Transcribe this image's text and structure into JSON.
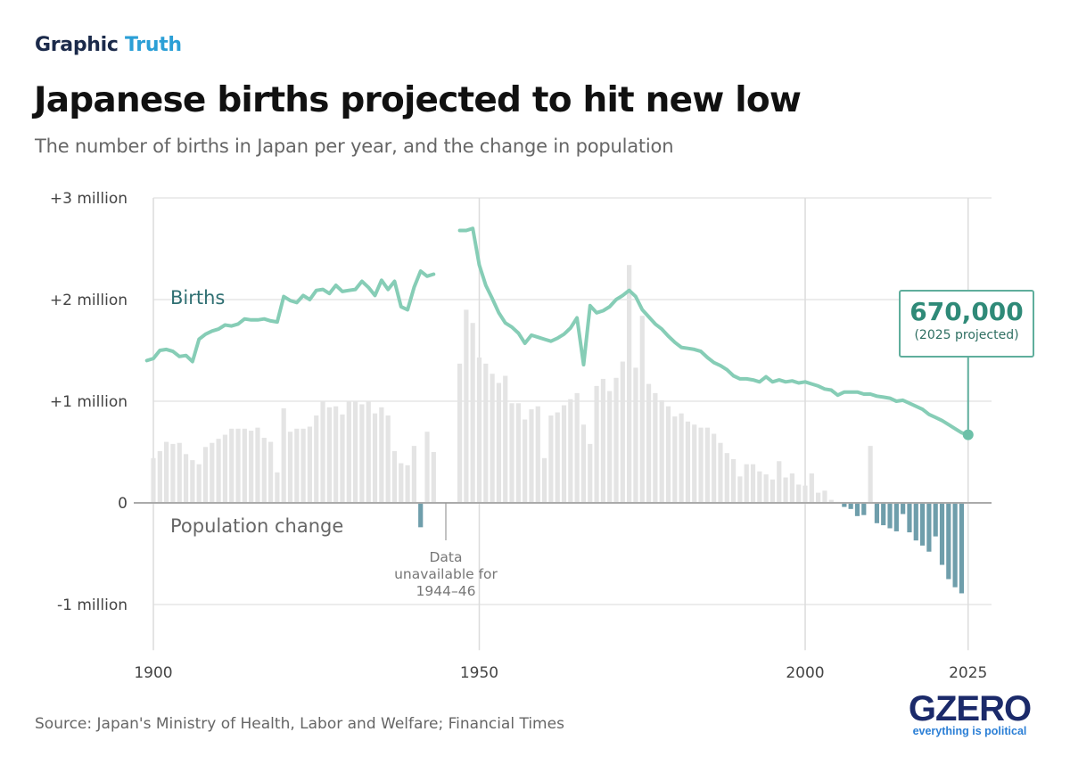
{
  "header": {
    "kicker_part1": "Graphic",
    "kicker_part2": "Truth",
    "title": "Japanese births projected to hit new low",
    "subtitle": "The number of births in Japan per year, and the change in population"
  },
  "footer": {
    "source": "Source: Japan's Ministry of Health, Labor and Welfare; Financial Times",
    "logo": "GZERO",
    "logo_tagline": "everything is political"
  },
  "colors": {
    "births_line": "#86cdb6",
    "bars_positive": "#e4e4e4",
    "bars_negative": "#6f9eab",
    "kicker_navy": "#1b2a4a",
    "kicker_blue": "#2b9fd6",
    "callout": "#2f8a78"
  },
  "chart_data": {
    "type": "line+bar",
    "title": "Japanese births projected to hit new low",
    "subtitle": "The number of births in Japan per year, and the change in population",
    "xlim": [
      1899,
      2029
    ],
    "ylim": [
      -1.45,
      3
    ],
    "x_ticks": [
      1900,
      1950,
      2000,
      2025
    ],
    "x_tick_labels": [
      "1900",
      "1950",
      "2000",
      "2025"
    ],
    "y_ticks": [
      3,
      2,
      1,
      0,
      -1
    ],
    "y_tick_labels": [
      "+3 million",
      "+2 million",
      "+1 million",
      "0",
      "-1 million"
    ],
    "grid": true,
    "series_labels": {
      "births": "Births",
      "population_change": "Population change"
    },
    "births": {
      "unit": "million",
      "points": [
        [
          1899,
          1.4
        ],
        [
          1900,
          1.42
        ],
        [
          1901,
          1.5
        ],
        [
          1902,
          1.51
        ],
        [
          1903,
          1.49
        ],
        [
          1904,
          1.44
        ],
        [
          1905,
          1.45
        ],
        [
          1906,
          1.39
        ],
        [
          1907,
          1.61
        ],
        [
          1908,
          1.66
        ],
        [
          1909,
          1.69
        ],
        [
          1910,
          1.71
        ],
        [
          1911,
          1.75
        ],
        [
          1912,
          1.74
        ],
        [
          1913,
          1.76
        ],
        [
          1914,
          1.81
        ],
        [
          1915,
          1.8
        ],
        [
          1916,
          1.8
        ],
        [
          1917,
          1.81
        ],
        [
          1918,
          1.79
        ],
        [
          1919,
          1.78
        ],
        [
          1920,
          2.03
        ],
        [
          1921,
          1.99
        ],
        [
          1922,
          1.97
        ],
        [
          1923,
          2.04
        ],
        [
          1924,
          2.0
        ],
        [
          1925,
          2.09
        ],
        [
          1926,
          2.1
        ],
        [
          1927,
          2.06
        ],
        [
          1928,
          2.14
        ],
        [
          1929,
          2.08
        ],
        [
          1930,
          2.09
        ],
        [
          1931,
          2.1
        ],
        [
          1932,
          2.18
        ],
        [
          1933,
          2.12
        ],
        [
          1934,
          2.04
        ],
        [
          1935,
          2.19
        ],
        [
          1936,
          2.1
        ],
        [
          1937,
          2.18
        ],
        [
          1938,
          1.93
        ],
        [
          1939,
          1.9
        ],
        [
          1940,
          2.12
        ],
        [
          1941,
          2.28
        ],
        [
          1942,
          2.23
        ],
        [
          1943,
          2.25
        ]
      ],
      "points_after_gap": [
        [
          1947,
          2.68
        ],
        [
          1948,
          2.68
        ],
        [
          1949,
          2.7
        ],
        [
          1950,
          2.34
        ],
        [
          1951,
          2.14
        ],
        [
          1952,
          2.01
        ],
        [
          1953,
          1.87
        ],
        [
          1954,
          1.77
        ],
        [
          1955,
          1.73
        ],
        [
          1956,
          1.67
        ],
        [
          1957,
          1.57
        ],
        [
          1958,
          1.65
        ],
        [
          1959,
          1.63
        ],
        [
          1960,
          1.61
        ],
        [
          1961,
          1.59
        ],
        [
          1962,
          1.62
        ],
        [
          1963,
          1.66
        ],
        [
          1964,
          1.72
        ],
        [
          1965,
          1.82
        ],
        [
          1966,
          1.36
        ],
        [
          1967,
          1.94
        ],
        [
          1968,
          1.87
        ],
        [
          1969,
          1.89
        ],
        [
          1970,
          1.93
        ],
        [
          1971,
          2.0
        ],
        [
          1972,
          2.04
        ],
        [
          1973,
          2.09
        ],
        [
          1974,
          2.03
        ],
        [
          1975,
          1.9
        ],
        [
          1976,
          1.83
        ],
        [
          1977,
          1.76
        ],
        [
          1978,
          1.71
        ],
        [
          1979,
          1.64
        ],
        [
          1980,
          1.58
        ],
        [
          1981,
          1.53
        ],
        [
          1982,
          1.52
        ],
        [
          1983,
          1.51
        ],
        [
          1984,
          1.49
        ],
        [
          1985,
          1.43
        ],
        [
          1986,
          1.38
        ],
        [
          1987,
          1.35
        ],
        [
          1988,
          1.31
        ],
        [
          1989,
          1.25
        ],
        [
          1990,
          1.22
        ],
        [
          1991,
          1.22
        ],
        [
          1992,
          1.21
        ],
        [
          1993,
          1.19
        ],
        [
          1994,
          1.24
        ],
        [
          1995,
          1.19
        ],
        [
          1996,
          1.21
        ],
        [
          1997,
          1.19
        ],
        [
          1998,
          1.2
        ],
        [
          1999,
          1.18
        ],
        [
          2000,
          1.19
        ],
        [
          2001,
          1.17
        ],
        [
          2002,
          1.15
        ],
        [
          2003,
          1.12
        ],
        [
          2004,
          1.11
        ],
        [
          2005,
          1.06
        ],
        [
          2006,
          1.09
        ],
        [
          2007,
          1.09
        ],
        [
          2008,
          1.09
        ],
        [
          2009,
          1.07
        ],
        [
          2010,
          1.07
        ],
        [
          2011,
          1.05
        ],
        [
          2012,
          1.04
        ],
        [
          2013,
          1.03
        ],
        [
          2014,
          1.0
        ],
        [
          2015,
          1.01
        ],
        [
          2016,
          0.98
        ],
        [
          2017,
          0.95
        ],
        [
          2018,
          0.92
        ],
        [
          2019,
          0.87
        ],
        [
          2020,
          0.84
        ],
        [
          2021,
          0.81
        ],
        [
          2022,
          0.77
        ],
        [
          2023,
          0.73
        ],
        [
          2024,
          0.69
        ],
        [
          2025,
          0.67
        ]
      ]
    },
    "population_change": {
      "unit": "million",
      "points": [
        [
          1900,
          0.44
        ],
        [
          1901,
          0.51
        ],
        [
          1902,
          0.6
        ],
        [
          1903,
          0.58
        ],
        [
          1904,
          0.59
        ],
        [
          1905,
          0.48
        ],
        [
          1906,
          0.42
        ],
        [
          1907,
          0.38
        ],
        [
          1908,
          0.55
        ],
        [
          1909,
          0.59
        ],
        [
          1910,
          0.63
        ],
        [
          1911,
          0.67
        ],
        [
          1912,
          0.73
        ],
        [
          1913,
          0.73
        ],
        [
          1914,
          0.73
        ],
        [
          1915,
          0.71
        ],
        [
          1916,
          0.74
        ],
        [
          1917,
          0.64
        ],
        [
          1918,
          0.6
        ],
        [
          1919,
          0.3
        ],
        [
          1920,
          0.93
        ],
        [
          1921,
          0.7
        ],
        [
          1922,
          0.73
        ],
        [
          1923,
          0.73
        ],
        [
          1924,
          0.75
        ],
        [
          1925,
          0.86
        ],
        [
          1926,
          1.0
        ],
        [
          1927,
          0.94
        ],
        [
          1928,
          0.95
        ],
        [
          1929,
          0.87
        ],
        [
          1930,
          1.0
        ],
        [
          1931,
          1.0
        ],
        [
          1932,
          0.97
        ],
        [
          1933,
          1.0
        ],
        [
          1934,
          0.88
        ],
        [
          1935,
          0.94
        ],
        [
          1936,
          0.86
        ],
        [
          1937,
          0.51
        ],
        [
          1938,
          0.39
        ],
        [
          1939,
          0.37
        ],
        [
          1940,
          0.56
        ],
        [
          1941,
          -0.24
        ],
        [
          1942,
          0.7
        ],
        [
          1943,
          0.5
        ],
        [
          1947,
          1.37
        ],
        [
          1948,
          1.9
        ],
        [
          1949,
          1.77
        ],
        [
          1950,
          1.43
        ],
        [
          1951,
          1.37
        ],
        [
          1952,
          1.27
        ],
        [
          1953,
          1.18
        ],
        [
          1954,
          1.25
        ],
        [
          1955,
          0.98
        ],
        [
          1956,
          0.98
        ],
        [
          1957,
          0.82
        ],
        [
          1958,
          0.92
        ],
        [
          1959,
          0.95
        ],
        [
          1960,
          0.44
        ],
        [
          1961,
          0.86
        ],
        [
          1962,
          0.89
        ],
        [
          1963,
          0.96
        ],
        [
          1964,
          1.02
        ],
        [
          1965,
          1.08
        ],
        [
          1966,
          0.77
        ],
        [
          1967,
          0.58
        ],
        [
          1968,
          1.15
        ],
        [
          1969,
          1.22
        ],
        [
          1970,
          1.1
        ],
        [
          1971,
          1.23
        ],
        [
          1972,
          1.39
        ],
        [
          1973,
          2.34
        ],
        [
          1974,
          1.33
        ],
        [
          1975,
          1.84
        ],
        [
          1976,
          1.17
        ],
        [
          1977,
          1.08
        ],
        [
          1978,
          1.01
        ],
        [
          1979,
          0.95
        ],
        [
          1980,
          0.85
        ],
        [
          1981,
          0.88
        ],
        [
          1982,
          0.8
        ],
        [
          1983,
          0.77
        ],
        [
          1984,
          0.74
        ],
        [
          1985,
          0.74
        ],
        [
          1986,
          0.68
        ],
        [
          1987,
          0.59
        ],
        [
          1988,
          0.49
        ],
        [
          1989,
          0.43
        ],
        [
          1990,
          0.26
        ],
        [
          1991,
          0.38
        ],
        [
          1992,
          0.38
        ],
        [
          1993,
          0.31
        ],
        [
          1994,
          0.28
        ],
        [
          1995,
          0.23
        ],
        [
          1996,
          0.41
        ],
        [
          1997,
          0.25
        ],
        [
          1998,
          0.29
        ],
        [
          1999,
          0.18
        ],
        [
          2000,
          0.17
        ],
        [
          2001,
          0.29
        ],
        [
          2002,
          0.1
        ],
        [
          2003,
          0.12
        ],
        [
          2004,
          0.03
        ],
        [
          2005,
          0.01
        ],
        [
          2006,
          -0.04
        ],
        [
          2007,
          -0.06
        ],
        [
          2008,
          -0.13
        ],
        [
          2009,
          -0.12
        ],
        [
          2010,
          0.56
        ],
        [
          2011,
          -0.2
        ],
        [
          2012,
          -0.22
        ],
        [
          2013,
          -0.25
        ],
        [
          2014,
          -0.28
        ],
        [
          2015,
          -0.11
        ],
        [
          2016,
          -0.29
        ],
        [
          2017,
          -0.37
        ],
        [
          2018,
          -0.42
        ],
        [
          2019,
          -0.48
        ],
        [
          2020,
          -0.33
        ],
        [
          2021,
          -0.61
        ],
        [
          2022,
          -0.75
        ],
        [
          2023,
          -0.83
        ],
        [
          2024,
          -0.89
        ]
      ]
    },
    "annotations": {
      "gap_note": [
        "Data",
        "unavailable for",
        "1944–46"
      ],
      "callout_value": "670,000",
      "callout_note": "(2025 projected)",
      "callout_year": 2025,
      "callout_births": 0.67
    }
  }
}
